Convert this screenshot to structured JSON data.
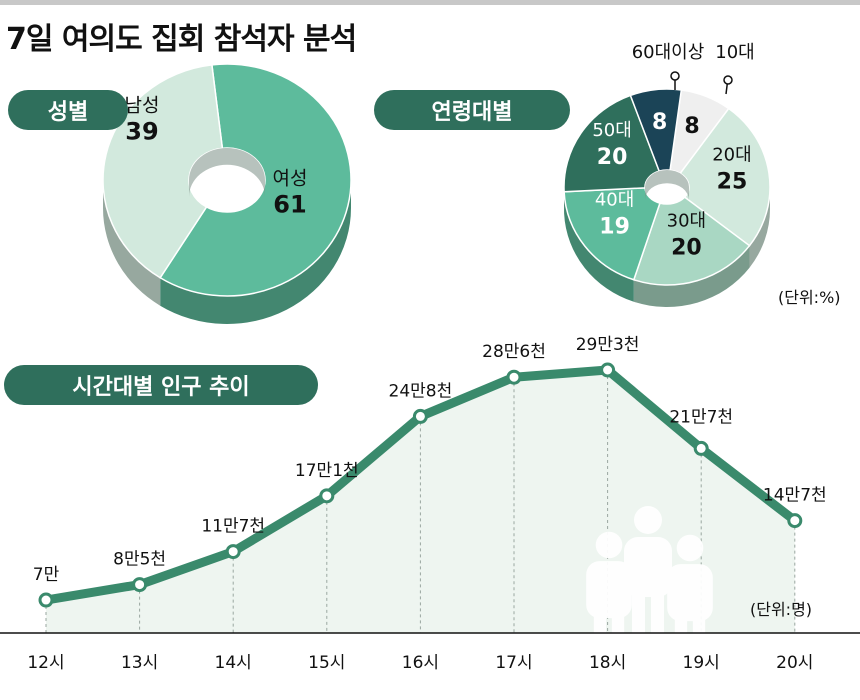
{
  "title": "7일 여의도 집회 참석자 분석",
  "sections": {
    "gender": "성별",
    "age": "연령대별",
    "time": "시간대별 인구 추이"
  },
  "units": {
    "percent": "(단위:%)",
    "people": "(단위:명)"
  },
  "colors": {
    "dark_green": "#2f6f5c",
    "mid_green": "#5dbb9c",
    "light_green": "#d2e9dd",
    "navy": "#1b4457",
    "white_slice": "#efefef",
    "line": "#3a8a6c",
    "area": "#eef5f0"
  },
  "chart_data": [
    {
      "type": "pie",
      "title": "성별",
      "categories": [
        "여성",
        "남성"
      ],
      "values": [
        61,
        39
      ]
    },
    {
      "type": "pie",
      "title": "연령대별",
      "categories": [
        "10대",
        "20대",
        "30대",
        "40대",
        "50대",
        "60대이상"
      ],
      "values": [
        8,
        25,
        20,
        19,
        20,
        8
      ],
      "unit": "(단위:%)"
    },
    {
      "type": "area",
      "title": "시간대별 인구 추이",
      "categories": [
        "12시",
        "13시",
        "14시",
        "15시",
        "16시",
        "17시",
        "18시",
        "19시",
        "20시"
      ],
      "values": [
        70000,
        85000,
        117000,
        171000,
        248000,
        286000,
        293000,
        217000,
        147000
      ],
      "value_labels": [
        "7만",
        "8만5천",
        "11만7천",
        "17만1천",
        "24만8천",
        "28만6천",
        "29만3천",
        "21만7천",
        "14만7천"
      ],
      "unit": "(단위:명)",
      "icon": "people-icon"
    }
  ]
}
